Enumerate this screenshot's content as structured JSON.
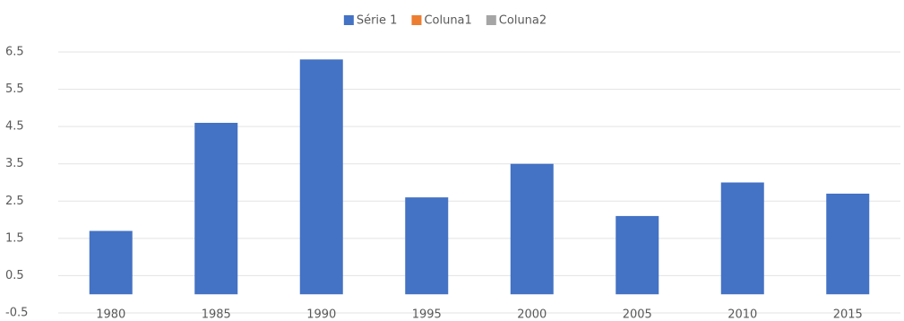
{
  "chart_data": {
    "type": "bar",
    "categories": [
      "1980",
      "1985",
      "1990",
      "1995",
      "2000",
      "2005",
      "2010",
      "2015"
    ],
    "series": [
      {
        "name": "Série 1",
        "color": "#4472c4",
        "values": [
          1.7,
          4.6,
          6.3,
          2.6,
          3.5,
          2.1,
          3.0,
          2.7
        ]
      },
      {
        "name": "Coluna1",
        "color": "#ed7d31",
        "values": [
          null,
          null,
          null,
          null,
          null,
          null,
          null,
          null
        ]
      },
      {
        "name": "Coluna2",
        "color": "#a5a5a5",
        "values": [
          null,
          null,
          null,
          null,
          null,
          null,
          null,
          null
        ]
      }
    ],
    "ylim": [
      -0.5,
      6.5
    ],
    "yticks": [
      -0.5,
      0.5,
      1.5,
      2.5,
      3.5,
      4.5,
      5.5,
      6.5
    ],
    "grid": true,
    "legend": "top"
  }
}
